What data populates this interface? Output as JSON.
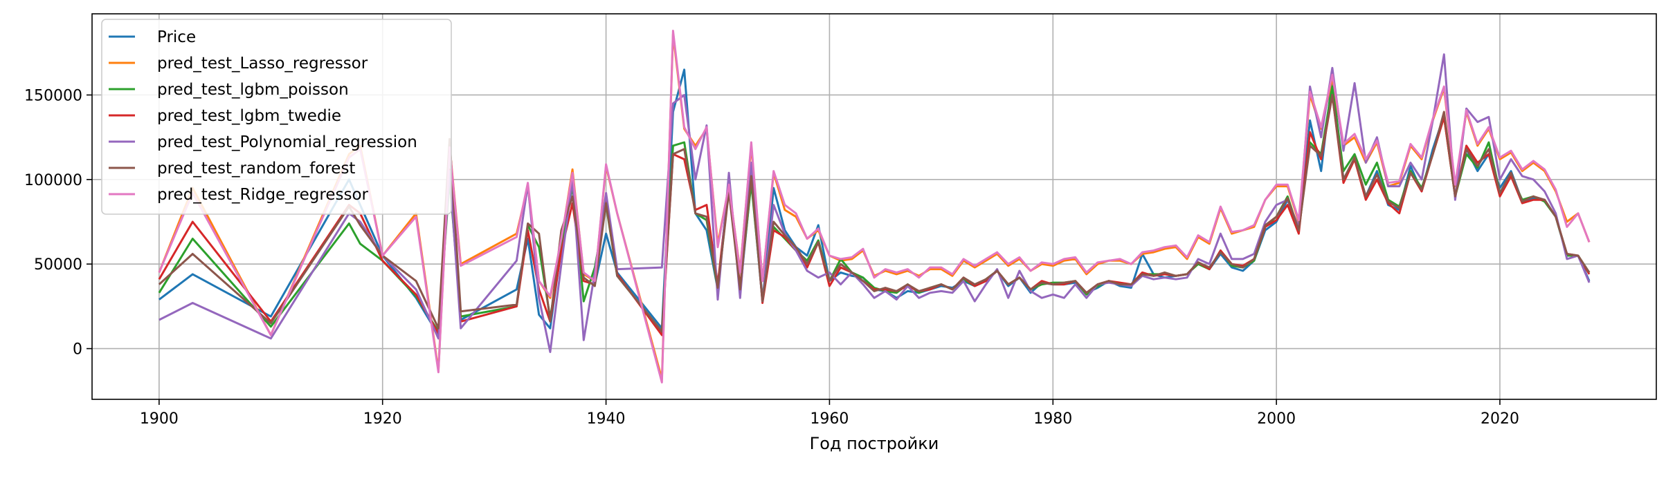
{
  "chart_data": {
    "type": "line",
    "title": "",
    "xlabel": "Год постройки",
    "ylabel": "",
    "xlim": [
      1894,
      2034
    ],
    "ylim": [
      -30000,
      198000
    ],
    "xticks": [
      1900,
      1920,
      1940,
      1960,
      1980,
      2000,
      2020
    ],
    "yticks": [
      0,
      50000,
      100000,
      150000
    ],
    "grid": true,
    "legend_position": "top-left",
    "x": [
      1900,
      1903,
      1910,
      1917,
      1918,
      1920,
      1923,
      1925,
      1926,
      1927,
      1932,
      1933,
      1934,
      1935,
      1936,
      1937,
      1938,
      1939,
      1940,
      1941,
      1945,
      1946,
      1947,
      1948,
      1949,
      1950,
      1951,
      1952,
      1953,
      1954,
      1955,
      1956,
      1957,
      1958,
      1959,
      1960,
      1961,
      1962,
      1963,
      1964,
      1965,
      1966,
      1967,
      1968,
      1969,
      1970,
      1971,
      1972,
      1973,
      1974,
      1975,
      1976,
      1977,
      1978,
      1979,
      1980,
      1981,
      1982,
      1983,
      1984,
      1985,
      1986,
      1987,
      1988,
      1989,
      1990,
      1991,
      1992,
      1993,
      1994,
      1995,
      1996,
      1997,
      1998,
      1999,
      2000,
      2001,
      2002,
      2003,
      2004,
      2005,
      2006,
      2007,
      2008,
      2009,
      2010,
      2011,
      2012,
      2013,
      2014,
      2015,
      2016,
      2017,
      2018,
      2019,
      2020,
      2021,
      2022,
      2023,
      2024,
      2025,
      2026,
      2027,
      2028
    ],
    "series": [
      {
        "name": "Price",
        "color": "#1f77b4",
        "values": [
          29000,
          44000,
          19000,
          100000,
          85000,
          55000,
          30000,
          8000,
          120000,
          17000,
          35000,
          65000,
          20000,
          12000,
          60000,
          100000,
          40000,
          38000,
          68000,
          45000,
          12000,
          140000,
          165000,
          80000,
          70000,
          35000,
          100000,
          33000,
          100000,
          28000,
          95000,
          70000,
          60000,
          55000,
          73000,
          40000,
          45000,
          43000,
          42000,
          35000,
          34000,
          30000,
          34000,
          33000,
          35000,
          37000,
          36000,
          40000,
          37000,
          40000,
          46000,
          37000,
          42000,
          33000,
          39000,
          38000,
          38000,
          39000,
          33000,
          36000,
          40000,
          37000,
          36000,
          56000,
          44000,
          42000,
          43000,
          44000,
          51000,
          47000,
          56000,
          48000,
          46000,
          52000,
          70000,
          75000,
          88000,
          70000,
          135000,
          105000,
          160000,
          100000,
          112000,
          90000,
          105000,
          85000,
          82000,
          108000,
          93000,
          118000,
          138000,
          90000,
          118000,
          105000,
          115000,
          95000,
          105000,
          87000,
          89000,
          88000,
          78000,
          55000,
          55000,
          40000
        ]
      },
      {
        "name": "pred_test_Lasso_regressor",
        "color": "#ff7f0e",
        "values": [
          45000,
          95000,
          8000,
          115000,
          120000,
          55000,
          80000,
          -13000,
          120000,
          50000,
          68000,
          96000,
          40000,
          30000,
          64000,
          106000,
          44000,
          40000,
          108000,
          80000,
          -18000,
          186000,
          130000,
          120000,
          130000,
          62000,
          96000,
          46000,
          120000,
          40000,
          104000,
          82000,
          78000,
          65000,
          70000,
          55000,
          52000,
          53000,
          58000,
          43000,
          46000,
          44000,
          46000,
          43000,
          47000,
          47000,
          43000,
          52000,
          48000,
          52000,
          56000,
          49000,
          53000,
          46000,
          50000,
          49000,
          52000,
          53000,
          44000,
          50000,
          52000,
          52000,
          50000,
          56000,
          57000,
          59000,
          60000,
          53000,
          66000,
          62000,
          83000,
          68000,
          70000,
          72000,
          88000,
          96000,
          96000,
          75000,
          150000,
          130000,
          160000,
          120000,
          125000,
          110000,
          122000,
          96000,
          98000,
          120000,
          112000,
          135000,
          154000,
          96000,
          140000,
          120000,
          130000,
          112000,
          116000,
          105000,
          110000,
          105000,
          93000,
          75000,
          80000,
          63000
        ]
      },
      {
        "name": "pred_test_lgbm_poisson",
        "color": "#2ca02c",
        "values": [
          33000,
          65000,
          13000,
          74000,
          62000,
          52000,
          31000,
          10000,
          100000,
          19000,
          25000,
          73000,
          60000,
          18000,
          60000,
          96000,
          28000,
          48000,
          85000,
          43000,
          10000,
          120000,
          122000,
          80000,
          76000,
          35000,
          95000,
          36000,
          98000,
          30000,
          72000,
          65000,
          58000,
          52000,
          64000,
          40000,
          53000,
          45000,
          42000,
          36000,
          34000,
          33000,
          38000,
          33000,
          36000,
          38000,
          35000,
          41000,
          37000,
          41000,
          46000,
          38000,
          42000,
          35000,
          38000,
          39000,
          39000,
          40000,
          32000,
          37000,
          40000,
          38000,
          38000,
          44000,
          44000,
          44000,
          43000,
          44000,
          50000,
          47000,
          58000,
          49000,
          48000,
          52000,
          72000,
          78000,
          90000,
          70000,
          122000,
          115000,
          155000,
          105000,
          115000,
          97000,
          110000,
          88000,
          84000,
          105000,
          95000,
          115000,
          137000,
          90000,
          115000,
          107000,
          122000,
          92000,
          102000,
          88000,
          90000,
          87000,
          78000,
          55000,
          55000,
          45000
        ]
      },
      {
        "name": "pred_test_lgbm_twedie",
        "color": "#d62728",
        "values": [
          41000,
          75000,
          16000,
          85000,
          80000,
          52000,
          32000,
          9000,
          106000,
          16000,
          25000,
          70000,
          35000,
          16000,
          58000,
          86000,
          40000,
          38000,
          88000,
          44000,
          8000,
          115000,
          112000,
          82000,
          85000,
          38000,
          97000,
          36000,
          108000,
          27000,
          70000,
          66000,
          58000,
          48000,
          63000,
          37000,
          48000,
          45000,
          40000,
          35000,
          35000,
          34000,
          37000,
          34000,
          35000,
          38000,
          35000,
          42000,
          37000,
          40000,
          46000,
          38000,
          42000,
          35000,
          40000,
          38000,
          38000,
          40000,
          33000,
          38000,
          40000,
          39000,
          38000,
          45000,
          43000,
          44000,
          43000,
          44000,
          51000,
          47000,
          58000,
          50000,
          49000,
          53000,
          72000,
          76000,
          85000,
          68000,
          128000,
          112000,
          150000,
          98000,
          112000,
          88000,
          100000,
          86000,
          80000,
          104000,
          93000,
          115000,
          137000,
          90000,
          120000,
          110000,
          115000,
          90000,
          102000,
          86000,
          88000,
          88000,
          78000,
          56000,
          55000,
          44000
        ]
      },
      {
        "name": "pred_test_Polynomial_regression",
        "color": "#9467bd",
        "values": [
          17000,
          27000,
          6000,
          80000,
          75000,
          55000,
          35000,
          6000,
          105000,
          12000,
          52000,
          97000,
          30000,
          -2000,
          50000,
          100000,
          5000,
          45000,
          92000,
          47000,
          48000,
          145000,
          150000,
          100000,
          132000,
          29000,
          104000,
          30000,
          110000,
          28000,
          85000,
          68000,
          58000,
          46000,
          42000,
          45000,
          38000,
          45000,
          38000,
          30000,
          34000,
          29000,
          37000,
          30000,
          33000,
          34000,
          33000,
          40000,
          28000,
          38000,
          47000,
          30000,
          46000,
          34000,
          30000,
          32000,
          30000,
          38000,
          30000,
          38000,
          39000,
          38000,
          37000,
          43000,
          41000,
          42000,
          41000,
          42000,
          53000,
          50000,
          68000,
          53000,
          53000,
          56000,
          75000,
          85000,
          88000,
          72000,
          155000,
          125000,
          166000,
          117000,
          157000,
          110000,
          125000,
          96000,
          96000,
          110000,
          100000,
          135000,
          174000,
          88000,
          142000,
          134000,
          137000,
          100000,
          112000,
          102000,
          100000,
          93000,
          80000,
          53000,
          55000,
          39000
        ]
      },
      {
        "name": "pred_test_random_forest",
        "color": "#8c564b",
        "values": [
          38000,
          56000,
          15000,
          84000,
          73000,
          55000,
          40000,
          12000,
          124000,
          22000,
          26000,
          74000,
          68000,
          16000,
          70000,
          90000,
          42000,
          37000,
          86000,
          43000,
          10000,
          115000,
          118000,
          80000,
          78000,
          36000,
          93000,
          35000,
          102000,
          28000,
          75000,
          67000,
          60000,
          50000,
          63000,
          40000,
          50000,
          45000,
          40000,
          34000,
          36000,
          34000,
          38000,
          34000,
          36000,
          38000,
          35000,
          42000,
          38000,
          41000,
          46000,
          38000,
          42000,
          35000,
          39000,
          38000,
          39000,
          40000,
          33000,
          38000,
          40000,
          38000,
          38000,
          44000,
          43000,
          45000,
          43000,
          44000,
          51000,
          48000,
          57000,
          50000,
          48000,
          53000,
          73000,
          78000,
          89000,
          70000,
          120000,
          114000,
          150000,
          100000,
          113000,
          90000,
          103000,
          87000,
          83000,
          104000,
          94000,
          115000,
          140000,
          90000,
          118000,
          108000,
          118000,
          92000,
          104000,
          87000,
          90000,
          88000,
          78000,
          56000,
          55000,
          45000
        ]
      },
      {
        "name": "pred_test_Ridge_regressor",
        "color": "#e377c2",
        "values": [
          45000,
          92000,
          8000,
          113000,
          118000,
          55000,
          78000,
          -14000,
          119000,
          49000,
          66000,
          98000,
          40000,
          31000,
          65000,
          104000,
          45000,
          40000,
          109000,
          80000,
          -20000,
          188000,
          131000,
          118000,
          131000,
          60000,
          97000,
          45000,
          122000,
          40000,
          105000,
          85000,
          80000,
          65000,
          71000,
          55000,
          53000,
          54000,
          59000,
          42000,
          47000,
          45000,
          47000,
          42000,
          48000,
          48000,
          44000,
          53000,
          49000,
          53000,
          57000,
          50000,
          54000,
          46000,
          51000,
          50000,
          53000,
          54000,
          45000,
          51000,
          52000,
          53000,
          50000,
          57000,
          58000,
          60000,
          61000,
          54000,
          67000,
          63000,
          84000,
          69000,
          70000,
          73000,
          88000,
          97000,
          97000,
          76000,
          152000,
          131000,
          162000,
          121000,
          127000,
          112000,
          123000,
          98000,
          99000,
          121000,
          113000,
          136000,
          155000,
          97000,
          141000,
          121000,
          131000,
          113000,
          117000,
          106000,
          111000,
          106000,
          94000,
          72000,
          80000,
          63000
        ]
      }
    ]
  }
}
